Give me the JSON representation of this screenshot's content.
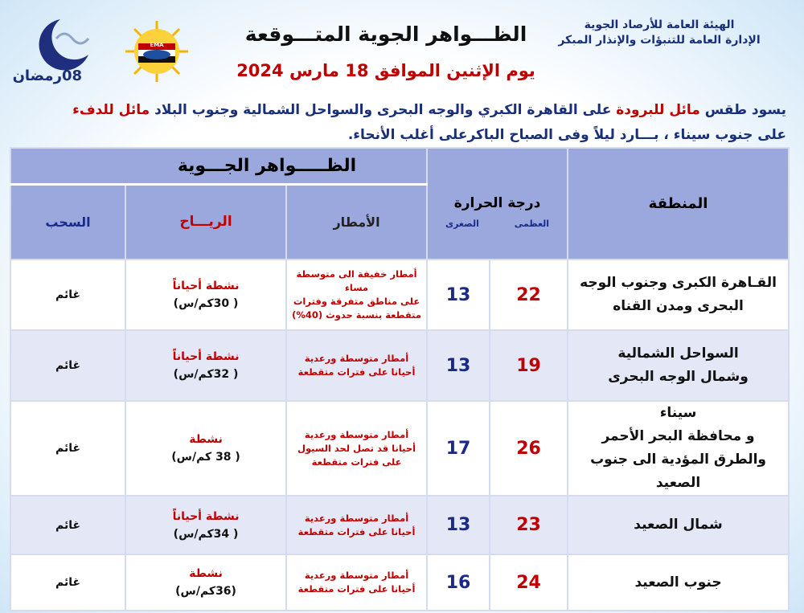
{
  "header": {
    "org": [
      "الهيئة العامة للأرصاد الجوية",
      "الإدارة العامة للتنبؤات والإنذار المبكر"
    ],
    "title": "الظـــواهر الجوية المتـــوقعة",
    "date": "يوم الإثنين الموافق 18 مارس 2024",
    "logo_text": "EMA",
    "ramadan_day": "08رمضان"
  },
  "summary": {
    "line1": [
      "يسود طقس",
      "مائل للبرودة",
      "على القاهرة الكبري والوجه البحرى والسواحل الشمالية وجنوب البلاد",
      "مائل للدفء"
    ],
    "line2": "على جنوب سيناء ، بـــارد ليلاً وفى الصباح الباكرعلى أغلب الأنحاء."
  },
  "table": {
    "headers": {
      "region": "المنطقة",
      "temperature": "درجة الحرارة",
      "max": "العظمى",
      "min": "الصغرى",
      "phenomena": "الظـــــواهر الجـــوية",
      "rain": "الأمطار",
      "wind": "الريـــاح",
      "clouds": "السحب"
    },
    "rows": [
      {
        "region": [
          "القـاهرة الكبرى وجنوب الوجه",
          "البحرى ومدن القناه"
        ],
        "max": 22,
        "min": 13,
        "rain": [
          "أمطار خفيفة الى متوسطة مساء",
          "على مناطق متفرقة وفترات",
          "متقطعة بنسبة حدوث (40%)"
        ],
        "wind": "نشطة أحياناً",
        "wind_speed": "( 30كم/س)",
        "clouds": "غائم"
      },
      {
        "region": [
          "السواحل الشمالية",
          "وشمال الوجه البحرى"
        ],
        "max": 19,
        "min": 13,
        "rain": [
          "أمطار متوسطة ورعدية",
          "أحيانا على فترات متقطعة"
        ],
        "wind": "نشطة أحياناً",
        "wind_speed": "( 32كم/س)",
        "clouds": "غائم"
      },
      {
        "region": [
          "سيناء",
          "و محافظة البحر الأحمر",
          "والطرق المؤدية الى جنوب الصعيد"
        ],
        "max": 26,
        "min": 17,
        "rain": [
          "أمطار متوسطة ورعدية",
          "أحيانا قد تصل لحد السيول",
          "على فترات متقطعة"
        ],
        "wind": "نشطة",
        "wind_speed": "( 38 كم/س)",
        "clouds": "غائم"
      },
      {
        "region": [
          "شمال الصعيد"
        ],
        "max": 23,
        "min": 13,
        "rain": [
          "أمطار متوسطة ورعدية",
          "أحيانا على فترات متقطعة"
        ],
        "wind": "نشطة أحياناً",
        "wind_speed": "( 34كم/س)",
        "clouds": "غائم"
      },
      {
        "region": [
          "جنوب الصعيد"
        ],
        "max": 24,
        "min": 16,
        "rain": [
          "أمطار متوسطة ورعدية",
          "أحيانا على فترات متقطعة"
        ],
        "wind": "نشطة",
        "wind_speed": "(36كم/س)",
        "clouds": "غائم"
      }
    ]
  }
}
